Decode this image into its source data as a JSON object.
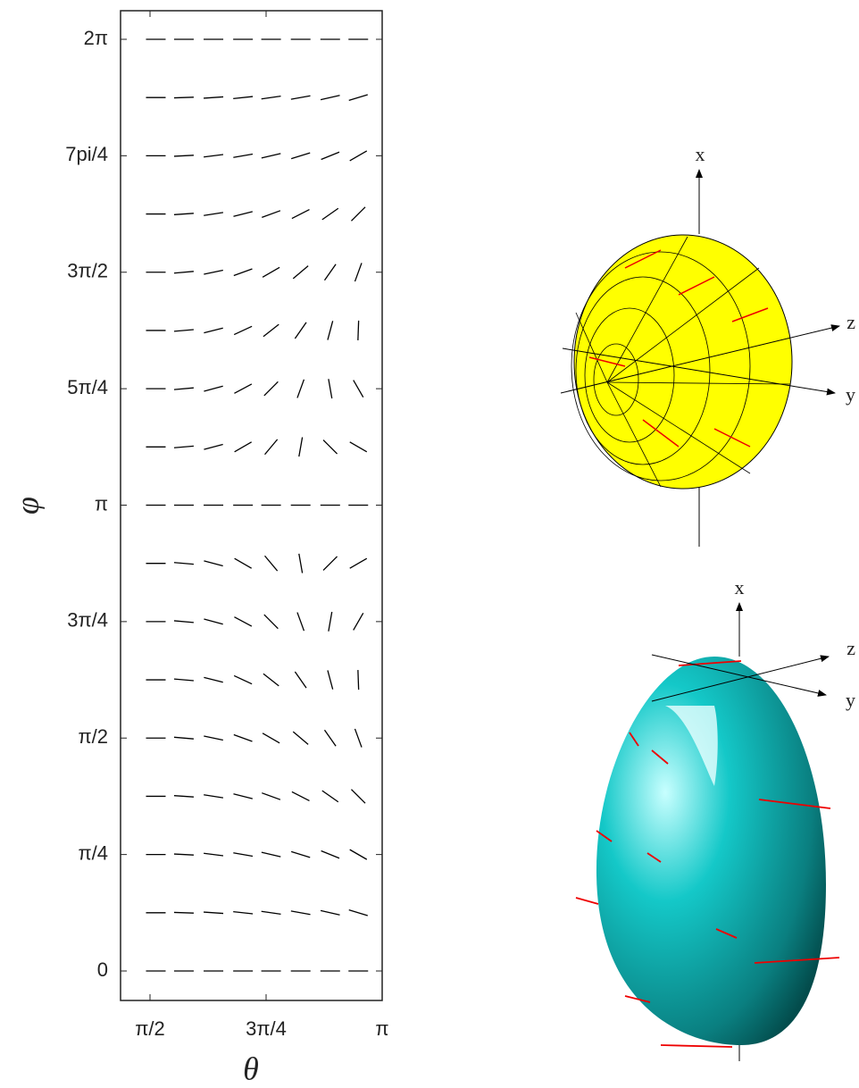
{
  "chart_data": {
    "type": "direction-field",
    "xlabel": "θ",
    "ylabel": "φ",
    "xlim": [
      1.3714,
      3.1416
    ],
    "ylim": [
      -0.1988,
      6.476
    ],
    "xticks": [
      {
        "value": 1.5708,
        "label": "π/2"
      },
      {
        "value": 2.3562,
        "label": "3π/4"
      },
      {
        "value": 3.1416,
        "label": "π"
      }
    ],
    "yticks": [
      {
        "value": 0,
        "label": "0"
      },
      {
        "value": 0.7854,
        "label": "π/4"
      },
      {
        "value": 1.5708,
        "label": "π/2"
      },
      {
        "value": 2.3562,
        "label": "3π/4"
      },
      {
        "value": 3.1416,
        "label": "π"
      },
      {
        "value": 3.927,
        "label": "5π/4"
      },
      {
        "value": 4.7124,
        "label": "3π/2"
      },
      {
        "value": 5.4978,
        "label": "7pi/4"
      },
      {
        "value": 6.2832,
        "label": "2π"
      }
    ],
    "theta": [
      1.61,
      1.8,
      2.0,
      2.2,
      2.39,
      2.59,
      2.79,
      2.98
    ],
    "phi": [
      0,
      0.3927,
      0.7854,
      1.1781,
      1.5708,
      1.9635,
      2.3562,
      2.7489,
      3.1416,
      3.5343,
      3.927,
      4.3197,
      4.7124,
      5.1051,
      5.4978,
      5.8905,
      6.2832
    ],
    "angles": [
      [
        0,
        0,
        0,
        0,
        0,
        0,
        0,
        0
      ],
      [
        0,
        -2,
        -4,
        -6,
        -8,
        -10,
        -13,
        -17
      ],
      [
        0,
        -3,
        -7,
        -10,
        -13,
        -17,
        -22,
        -30
      ],
      [
        0,
        -4,
        -9,
        -14,
        -20,
        -27,
        -35,
        -45
      ],
      [
        0,
        -5,
        -12,
        -20,
        -30,
        -40,
        -55,
        -70
      ],
      [
        0,
        -5,
        -14,
        -25,
        -38,
        -55,
        -75,
        -88
      ],
      [
        0,
        -5,
        -15,
        -28,
        -45,
        -70,
        80,
        60
      ],
      [
        0,
        -5,
        -15,
        -30,
        -50,
        -80,
        45,
        30
      ],
      [
        0,
        0,
        0,
        0,
        0,
        0,
        0,
        0
      ],
      [
        0,
        5,
        15,
        30,
        50,
        80,
        -45,
        -30
      ],
      [
        0,
        5,
        15,
        28,
        45,
        70,
        -80,
        -60
      ],
      [
        0,
        5,
        14,
        25,
        38,
        55,
        75,
        88
      ],
      [
        0,
        5,
        12,
        20,
        30,
        40,
        55,
        70
      ],
      [
        0,
        4,
        9,
        14,
        20,
        27,
        35,
        45
      ],
      [
        0,
        3,
        7,
        10,
        13,
        17,
        22,
        30
      ],
      [
        0,
        2,
        4,
        6,
        8,
        10,
        13,
        17
      ],
      [
        0,
        0,
        0,
        0,
        0,
        0,
        0,
        0
      ]
    ]
  },
  "renders": [
    {
      "x_label": "x",
      "y_label": "y",
      "z_label": "z"
    },
    {
      "x_label": "x",
      "y_label": "y",
      "z_label": "z"
    }
  ]
}
